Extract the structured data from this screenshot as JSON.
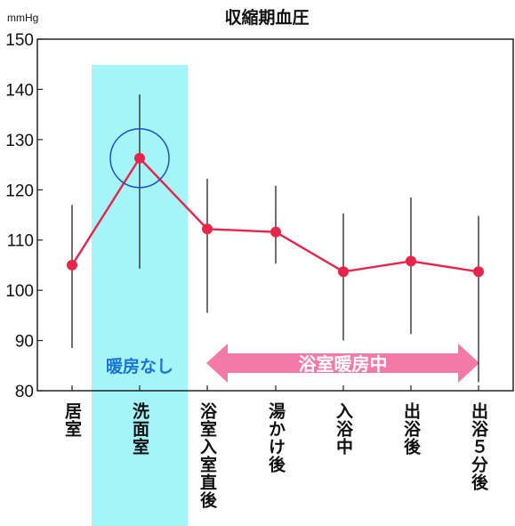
{
  "colors": {
    "line": "#e8244a",
    "band": "#a4f4f8",
    "arrow": "#f47aa6",
    "circle": "#1d4fd0",
    "band_text": "#1a73d9",
    "axis": "#222222"
  },
  "chart_data": {
    "type": "line",
    "title": "収縮期血圧",
    "ylabel": "mmHg",
    "ylim": [
      80,
      150
    ],
    "yticks": [
      "80",
      "90",
      "100",
      "110",
      "120",
      "130",
      "140",
      "150"
    ],
    "categories": [
      "居室",
      "洗面室",
      "浴室入室直後",
      "湯かけ後",
      "入浴中",
      "出浴後",
      "出浴５分後"
    ],
    "series": [
      {
        "values": [
          105,
          126.3,
          112.2,
          111.6,
          103.7,
          105.8,
          103.7
        ],
        "error_low": [
          88.5,
          104.3,
          95.5,
          105.3,
          90,
          91.3,
          81.7
        ],
        "error_high": [
          117,
          139,
          122.2,
          120.8,
          115.3,
          118.5,
          114.8
        ]
      }
    ],
    "annotations": {
      "band": {
        "category": "洗面室",
        "label": "暖房なし"
      },
      "arrow": {
        "from": "浴室入室直後",
        "to": "出浴５分後",
        "label": "浴室暖房中"
      },
      "highlight": {
        "category": "洗面室"
      }
    }
  }
}
